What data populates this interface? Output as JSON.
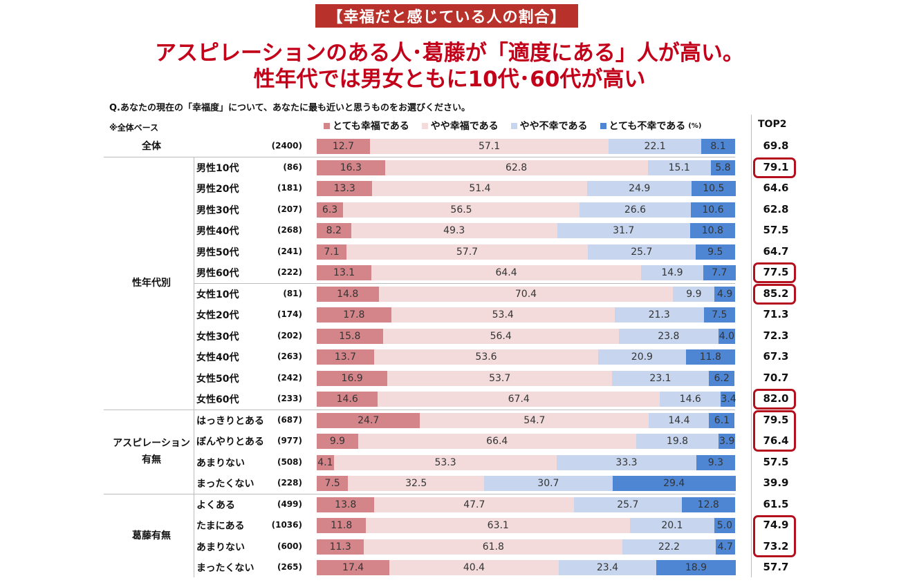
{
  "header": {
    "badge": "【幸福だと感じている人の割合】",
    "headline_line1": "アスピレーションのある人･葛藤が「適度にある」人が高い。",
    "headline_line2": "性年代では男女ともに10代･60代が高い",
    "question": "Q.あなたの現在の「幸福度」について、あなたに最も近いと思うものをお選びください。",
    "base_note": "※全体ベース",
    "top2_header": "TOP2",
    "unit": "(%)"
  },
  "colors": {
    "very_happy": "#d4858a",
    "somewhat_happy": "#f3dadb",
    "somewhat_unhappy": "#c7d6ee",
    "very_unhappy": "#4f86d3",
    "highlight_box": "#b40f1d",
    "headline": "#c3001a"
  },
  "chart_data": {
    "type": "bar",
    "orientation": "horizontal-stacked-100",
    "series_names": [
      "とても幸福である",
      "やや幸福である",
      "やや不幸である",
      "とても不幸である"
    ],
    "groups": [
      {
        "label": "全体",
        "row_range": [
          0,
          0
        ]
      },
      {
        "label": "性年代別",
        "row_range": [
          1,
          12
        ]
      },
      {
        "label": "アスピレーション有無",
        "label_lines": [
          "アスピレーション",
          "有無"
        ],
        "row_range": [
          13,
          16
        ]
      },
      {
        "label": "葛藤有無",
        "row_range": [
          17,
          20
        ]
      }
    ],
    "rows": [
      {
        "label": "全体",
        "n": "(2400)",
        "values": [
          12.7,
          57.1,
          22.1,
          8.1
        ],
        "top2": "69.8",
        "highlight": false
      },
      {
        "label": "男性10代",
        "n": "(86)",
        "values": [
          16.3,
          62.8,
          15.1,
          5.8
        ],
        "top2": "79.1",
        "highlight": true
      },
      {
        "label": "男性20代",
        "n": "(181)",
        "values": [
          13.3,
          51.4,
          24.9,
          10.5
        ],
        "top2": "64.6",
        "highlight": false
      },
      {
        "label": "男性30代",
        "n": "(207)",
        "values": [
          6.3,
          56.5,
          26.6,
          10.6
        ],
        "top2": "62.8",
        "highlight": false
      },
      {
        "label": "男性40代",
        "n": "(268)",
        "values": [
          8.2,
          49.3,
          31.7,
          10.8
        ],
        "top2": "57.5",
        "highlight": false
      },
      {
        "label": "男性50代",
        "n": "(241)",
        "values": [
          7.1,
          57.7,
          25.7,
          9.5
        ],
        "top2": "64.7",
        "highlight": false
      },
      {
        "label": "男性60代",
        "n": "(222)",
        "values": [
          13.1,
          64.4,
          14.9,
          7.7
        ],
        "top2": "77.5",
        "highlight": true
      },
      {
        "label": "女性10代",
        "n": "(81)",
        "values": [
          14.8,
          70.4,
          9.9,
          4.9
        ],
        "top2": "85.2",
        "highlight": true
      },
      {
        "label": "女性20代",
        "n": "(174)",
        "values": [
          17.8,
          53.4,
          21.3,
          7.5
        ],
        "top2": "71.3",
        "highlight": false
      },
      {
        "label": "女性30代",
        "n": "(202)",
        "values": [
          15.8,
          56.4,
          23.8,
          4.0
        ],
        "top2": "72.3",
        "highlight": false
      },
      {
        "label": "女性40代",
        "n": "(263)",
        "values": [
          13.7,
          53.6,
          20.9,
          11.8
        ],
        "top2": "67.3",
        "highlight": false
      },
      {
        "label": "女性50代",
        "n": "(242)",
        "values": [
          16.9,
          53.7,
          23.1,
          6.2
        ],
        "top2": "70.7",
        "highlight": false
      },
      {
        "label": "女性60代",
        "n": "(233)",
        "values": [
          14.6,
          67.4,
          14.6,
          3.4
        ],
        "top2": "82.0",
        "highlight": true
      },
      {
        "label": "はっきりとある",
        "n": "(687)",
        "values": [
          24.7,
          54.7,
          14.4,
          6.1
        ],
        "top2": "79.5",
        "highlight": true
      },
      {
        "label": "ぼんやりとある",
        "n": "(977)",
        "values": [
          9.9,
          66.4,
          19.8,
          3.9
        ],
        "top2": "76.4",
        "highlight": true
      },
      {
        "label": "あまりない",
        "n": "(508)",
        "values": [
          4.1,
          53.3,
          33.3,
          9.3
        ],
        "top2": "57.5",
        "highlight": false
      },
      {
        "label": "まったくない",
        "n": "(228)",
        "values": [
          7.5,
          32.5,
          30.7,
          29.4
        ],
        "top2": "39.9",
        "highlight": false
      },
      {
        "label": "よくある",
        "n": "(499)",
        "values": [
          13.8,
          47.7,
          25.7,
          12.8
        ],
        "top2": "61.5",
        "highlight": false
      },
      {
        "label": "たまにある",
        "n": "(1036)",
        "values": [
          11.8,
          63.1,
          20.1,
          5.0
        ],
        "top2": "74.9",
        "highlight": true
      },
      {
        "label": "あまりない",
        "n": "(600)",
        "values": [
          11.3,
          61.8,
          22.2,
          4.7
        ],
        "top2": "73.2",
        "highlight": true
      },
      {
        "label": "まったくない",
        "n": "(265)",
        "values": [
          17.4,
          40.4,
          23.4,
          18.9
        ],
        "top2": "57.7",
        "highlight": false
      }
    ],
    "xlim": [
      0,
      100
    ]
  }
}
